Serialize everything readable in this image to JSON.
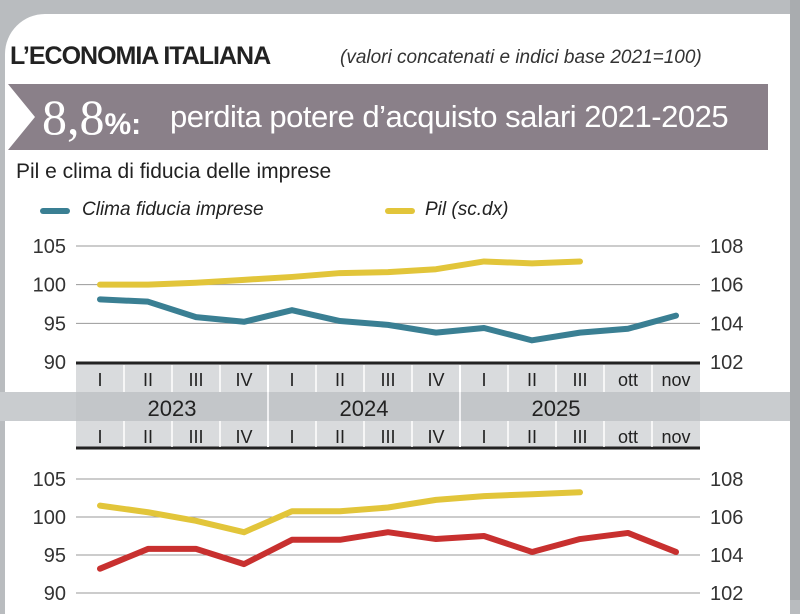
{
  "header": {
    "title": "L’ECONOMIA ITALIANA",
    "subtitle": "(valori concatenati e indici base 2021=100)"
  },
  "banner": {
    "value": "8,8",
    "pct": "%:",
    "text": "perdita potere d’acquisto salari 2021-2025"
  },
  "colors": {
    "clima": "#3a7f93",
    "pil": "#e2c53a",
    "red": "#c8302f",
    "banner": "#8a8089"
  },
  "chart_data": [
    {
      "type": "line",
      "title": "Pil e clima di fiducia delle imprese",
      "categories": [
        "I",
        "II",
        "III",
        "IV",
        "I",
        "II",
        "III",
        "IV",
        "I",
        "II",
        "III",
        "ott",
        "nov"
      ],
      "years": [
        "2023",
        "2024",
        "2025"
      ],
      "left_axis": {
        "ylim": [
          90,
          105
        ],
        "ticks": [
          "105",
          "100",
          "95",
          "90"
        ]
      },
      "right_axis": {
        "ylim": [
          102,
          108
        ],
        "ticks": [
          "108",
          "106",
          "104",
          "102"
        ]
      },
      "legend": "top-left",
      "series": [
        {
          "name": "Clima fiducia imprese",
          "axis": "left",
          "color": "#3a7f93",
          "values": [
            98.1,
            97.8,
            95.8,
            95.2,
            96.7,
            95.3,
            94.8,
            93.8,
            94.4,
            92.8,
            93.8,
            94.3,
            96.0
          ]
        },
        {
          "name": "Pil (sc.dx)",
          "axis": "right",
          "color": "#e2c53a",
          "values": [
            106.0,
            106.0,
            106.1,
            106.25,
            106.4,
            106.6,
            106.65,
            106.8,
            107.2,
            107.1,
            107.2,
            null,
            null
          ]
        }
      ]
    },
    {
      "type": "line",
      "categories": [
        "I",
        "II",
        "III",
        "IV",
        "I",
        "II",
        "III",
        "IV",
        "I",
        "II",
        "III",
        "ott",
        "nov"
      ],
      "left_axis": {
        "ylim": [
          90,
          105
        ],
        "ticks": [
          "105",
          "100",
          "95",
          "90"
        ]
      },
      "right_axis": {
        "ylim": [
          102,
          108
        ],
        "ticks": [
          "108",
          "106",
          "104",
          "102"
        ]
      },
      "series": [
        {
          "axis": "left",
          "color": "#c8302f",
          "values": [
            93.2,
            95.8,
            95.8,
            93.8,
            97.0,
            97.0,
            98.0,
            97.1,
            97.5,
            95.4,
            97.1,
            97.9,
            95.4
          ]
        },
        {
          "axis": "right",
          "color": "#e2c53a",
          "values": [
            106.6,
            106.25,
            105.8,
            105.2,
            106.3,
            106.3,
            106.5,
            106.9,
            107.1,
            107.2,
            107.3,
            null,
            null
          ]
        }
      ]
    }
  ]
}
